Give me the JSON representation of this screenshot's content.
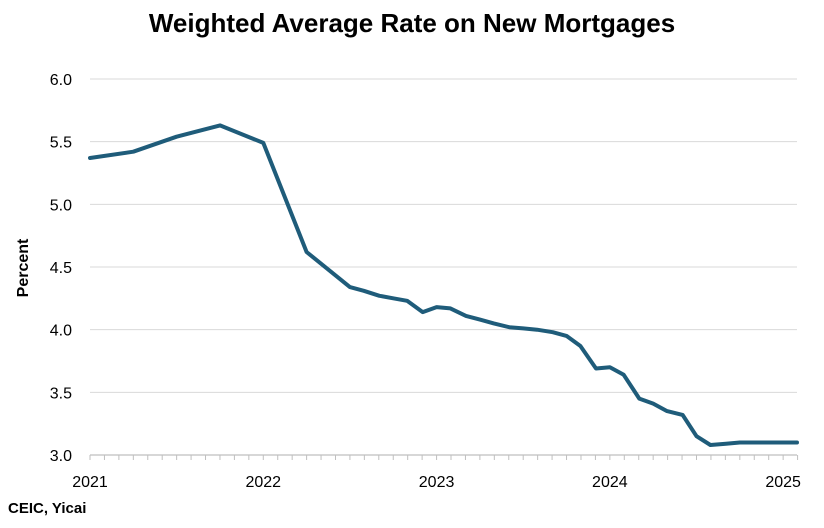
{
  "chart_data": {
    "type": "line",
    "title": "Weighted Average Rate on New Mortgages",
    "xlabel": "",
    "ylabel": "Percent",
    "source": "CEIC, Yicai",
    "xlim": [
      2021.0,
      2025.08
    ],
    "ylim": [
      3.0,
      6.0
    ],
    "x_ticks": [
      {
        "value": 2021,
        "label": "2021"
      },
      {
        "value": 2022,
        "label": "2022"
      },
      {
        "value": 2023,
        "label": "2023"
      },
      {
        "value": 2024,
        "label": "2024"
      },
      {
        "value": 2025,
        "label": "2025"
      }
    ],
    "y_ticks": [
      {
        "value": 3.0,
        "label": "3.0"
      },
      {
        "value": 3.5,
        "label": "3.5"
      },
      {
        "value": 4.0,
        "label": "4.0"
      },
      {
        "value": 4.5,
        "label": "4.5"
      },
      {
        "value": 5.0,
        "label": "5.0"
      },
      {
        "value": 5.5,
        "label": "5.5"
      },
      {
        "value": 6.0,
        "label": "6.0"
      }
    ],
    "grid": true,
    "legend": "none",
    "series": [
      {
        "color": "#1f5c7a",
        "x": [
          2021.0,
          2021.25,
          2021.5,
          2021.75,
          2022.0,
          2022.25,
          2022.5,
          2022.58,
          2022.67,
          2022.75,
          2022.83,
          2022.92,
          2023.0,
          2023.08,
          2023.17,
          2023.25,
          2023.33,
          2023.42,
          2023.5,
          2023.58,
          2023.67,
          2023.75,
          2023.83,
          2023.92,
          2024.0,
          2024.08,
          2024.17,
          2024.25,
          2024.33,
          2024.42,
          2024.5,
          2024.58,
          2024.67,
          2024.75,
          2024.83,
          2024.92,
          2025.0,
          2025.08
        ],
        "y": [
          5.37,
          5.42,
          5.54,
          5.63,
          5.49,
          4.62,
          4.34,
          4.31,
          4.27,
          4.25,
          4.23,
          4.14,
          4.18,
          4.17,
          4.11,
          4.08,
          4.05,
          4.02,
          4.01,
          4.0,
          3.98,
          3.95,
          3.87,
          3.69,
          3.7,
          3.64,
          3.45,
          3.41,
          3.35,
          3.32,
          3.15,
          3.08,
          3.09,
          3.1,
          3.1,
          3.1,
          3.1,
          3.1
        ]
      }
    ]
  }
}
